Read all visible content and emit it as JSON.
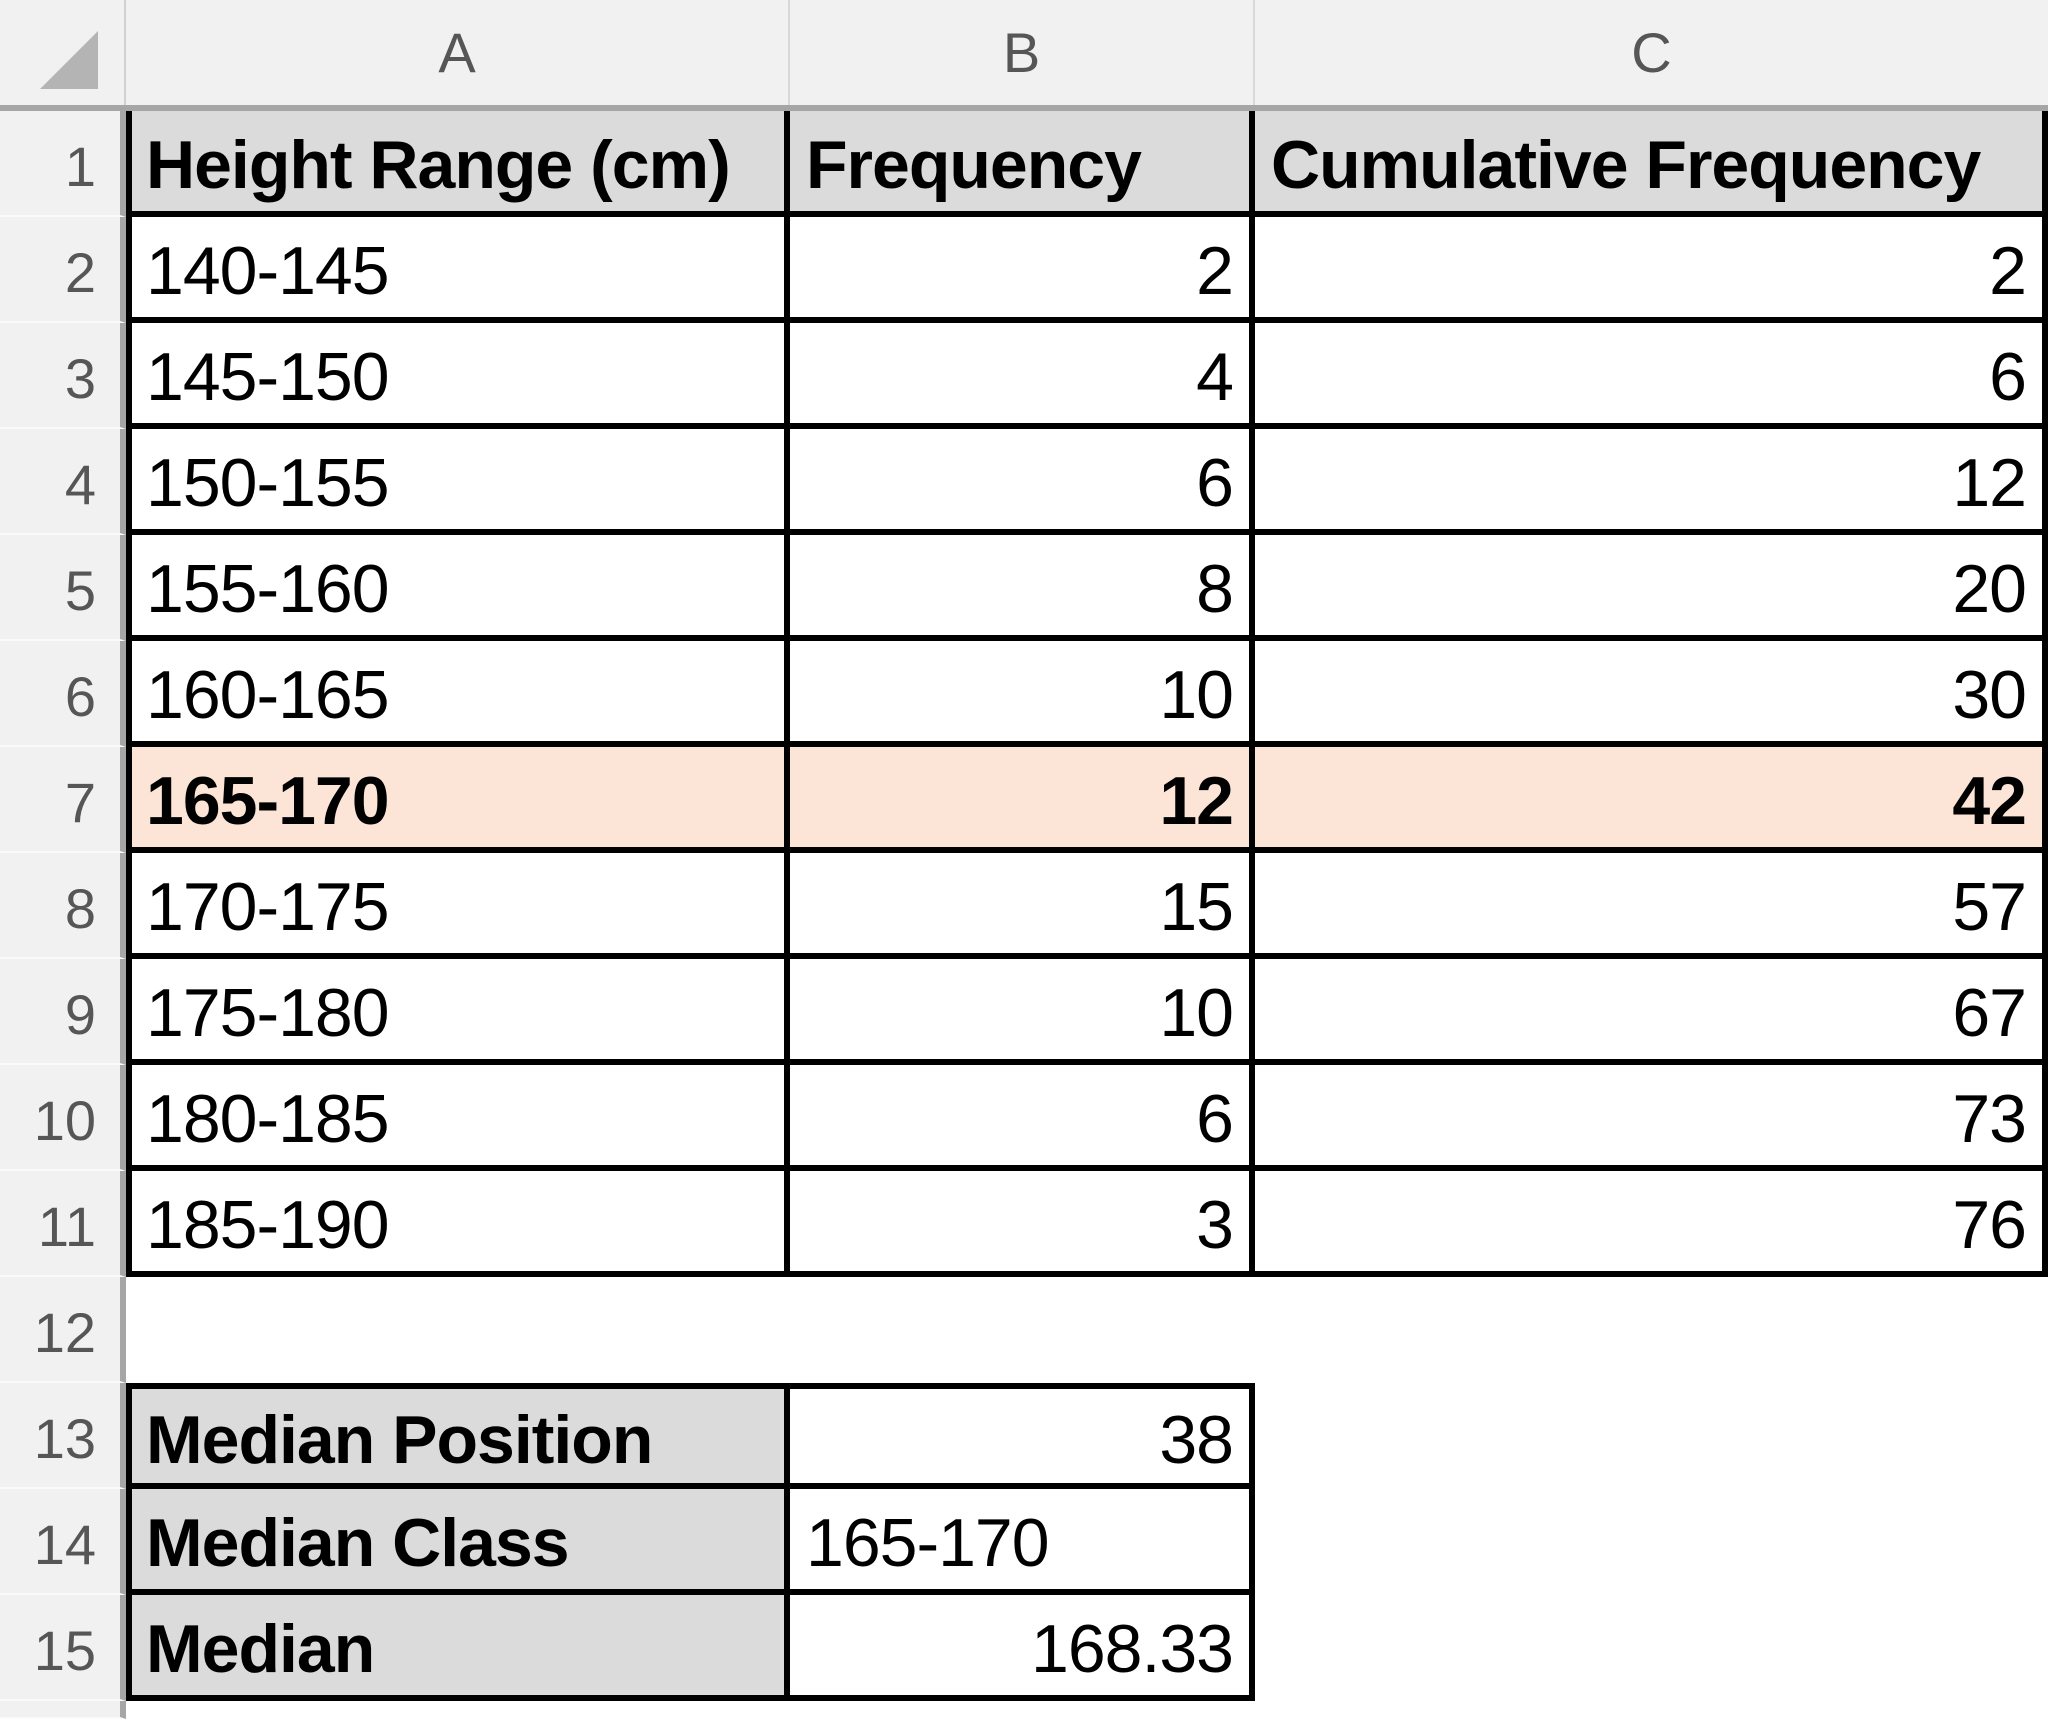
{
  "spreadsheet": {
    "column_headers": [
      "A",
      "B",
      "C"
    ],
    "row_numbers": [
      "1",
      "2",
      "3",
      "4",
      "5",
      "6",
      "7",
      "8",
      "9",
      "10",
      "11",
      "12",
      "13",
      "14",
      "15"
    ],
    "table": {
      "headers": {
        "height_range": "Height Range (cm)",
        "frequency": "Frequency",
        "cumulative": "Cumulative Frequency"
      },
      "data": [
        {
          "height_range": "140-145",
          "frequency": "2",
          "cumulative": "2"
        },
        {
          "height_range": "145-150",
          "frequency": "4",
          "cumulative": "6"
        },
        {
          "height_range": "150-155",
          "frequency": "6",
          "cumulative": "12"
        },
        {
          "height_range": "155-160",
          "frequency": "8",
          "cumulative": "20"
        },
        {
          "height_range": "160-165",
          "frequency": "10",
          "cumulative": "30"
        },
        {
          "height_range": "165-170",
          "frequency": "12",
          "cumulative": "42"
        },
        {
          "height_range": "170-175",
          "frequency": "15",
          "cumulative": "57"
        },
        {
          "height_range": "175-180",
          "frequency": "10",
          "cumulative": "67"
        },
        {
          "height_range": "180-185",
          "frequency": "6",
          "cumulative": "73"
        },
        {
          "height_range": "185-190",
          "frequency": "3",
          "cumulative": "76"
        }
      ],
      "highlighted_row": "165-170"
    },
    "summary": {
      "median_position": {
        "label": "Median Position",
        "value": "38"
      },
      "median_class": {
        "label": "Median Class",
        "value": "165-170"
      },
      "median": {
        "label": "Median",
        "value": "168.33"
      }
    },
    "colors": {
      "highlight_fill": "#FCE4D6",
      "header_fill": "#DBDBDB",
      "grid_border": "#000000",
      "frame_fill": "#F1F1F1"
    }
  }
}
